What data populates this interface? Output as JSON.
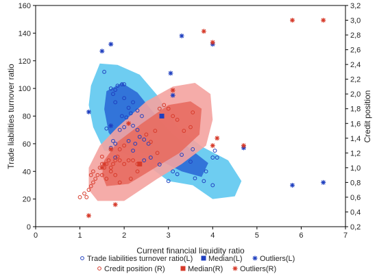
{
  "chart_data": {
    "type": "scatter",
    "xlabel": "Current financial liquidity ratio",
    "ylabel_left": "Trade liabilities turnover ratio",
    "ylabel_right": "Credit position",
    "x_ticks": [
      "0",
      "1",
      "2",
      "3",
      "4",
      "5",
      "6",
      "7"
    ],
    "y_left_ticks": [
      "0",
      "20",
      "40",
      "60",
      "80",
      "100",
      "120",
      "140",
      "160"
    ],
    "y_right_ticks": [
      "0,2",
      "0,4",
      "0,6",
      "0,8",
      "1,0",
      "1,2",
      "1,4",
      "1,6",
      "1,8",
      "2,0",
      "2,2",
      "2,4",
      "2,6",
      "2,8",
      "3,0",
      "3,2"
    ],
    "xlim": [
      0,
      7
    ],
    "ylim_left": [
      0,
      160
    ],
    "ylim_right": [
      0.2,
      3.2
    ],
    "grid": false,
    "legend_placement": "bottom",
    "series": [
      {
        "name": "Trade liabilities turnover ratio(L)",
        "axis": "left",
        "marker": "circle",
        "color": "#1f3fbf",
        "points": [
          [
            1.55,
            112
          ],
          [
            1.7,
            100
          ],
          [
            1.8,
            99
          ],
          [
            1.85,
            102
          ],
          [
            1.95,
            103
          ],
          [
            2.0,
            103
          ],
          [
            1.75,
            96
          ],
          [
            1.8,
            90
          ],
          [
            2.0,
            93
          ],
          [
            2.2,
            90
          ],
          [
            2.1,
            86
          ],
          [
            2.15,
            82
          ],
          [
            2.3,
            84
          ],
          [
            2.4,
            80
          ],
          [
            2.05,
            79
          ],
          [
            1.95,
            80
          ],
          [
            1.6,
            71
          ],
          [
            1.9,
            70
          ],
          [
            2.0,
            72
          ],
          [
            2.2,
            73
          ],
          [
            2.3,
            70
          ],
          [
            1.75,
            62
          ],
          [
            1.8,
            60
          ],
          [
            1.7,
            57
          ],
          [
            2.1,
            62
          ],
          [
            2.25,
            60
          ],
          [
            2.35,
            65
          ],
          [
            2.45,
            63
          ],
          [
            2.55,
            60
          ],
          [
            2.2,
            55
          ],
          [
            1.8,
            50
          ],
          [
            2.45,
            48
          ],
          [
            2.6,
            50
          ],
          [
            3.1,
            40
          ],
          [
            3.2,
            38
          ],
          [
            3.0,
            33
          ],
          [
            3.5,
            47
          ],
          [
            3.6,
            35
          ],
          [
            3.8,
            33
          ],
          [
            3.85,
            40
          ],
          [
            4.0,
            50
          ],
          [
            4.05,
            55
          ],
          [
            4.1,
            50
          ],
          [
            4.0,
            30
          ],
          [
            3.3,
            52
          ],
          [
            3.55,
            56
          ],
          [
            2.8,
            45
          ]
        ]
      },
      {
        "name": "Median(L)",
        "axis": "left",
        "marker": "square",
        "color": "#1f3fbf",
        "points": [
          [
            2.85,
            80
          ]
        ]
      },
      {
        "name": "Outliers(L)",
        "axis": "left",
        "marker": "star",
        "color": "#1f3fbf",
        "points": [
          [
            1.2,
            83
          ],
          [
            1.5,
            127
          ],
          [
            1.7,
            132
          ],
          [
            3.05,
            111
          ],
          [
            3.3,
            138
          ],
          [
            4.0,
            132
          ],
          [
            4.7,
            57
          ],
          [
            5.8,
            30
          ],
          [
            6.5,
            32
          ],
          [
            1.7,
            73
          ],
          [
            3.1,
            95
          ]
        ]
      },
      {
        "name": "Credit position (R)",
        "axis": "right",
        "marker": "circle",
        "color": "#d63a2a",
        "points": [
          [
            1.0,
            0.6
          ],
          [
            1.1,
            0.65
          ],
          [
            1.15,
            0.6
          ],
          [
            1.2,
            0.7
          ],
          [
            1.25,
            0.75
          ],
          [
            1.3,
            0.8
          ],
          [
            1.35,
            0.85
          ],
          [
            1.25,
            0.9
          ],
          [
            1.3,
            0.95
          ],
          [
            1.4,
            0.9
          ],
          [
            1.45,
            1.0
          ],
          [
            1.5,
            1.05
          ],
          [
            1.55,
            1.0
          ],
          [
            1.6,
            1.05
          ],
          [
            1.65,
            1.1
          ],
          [
            1.7,
            1.0
          ],
          [
            1.75,
            1.05
          ],
          [
            1.8,
            1.1
          ],
          [
            1.85,
            1.15
          ],
          [
            1.9,
            1.1
          ],
          [
            2.0,
            1.05
          ],
          [
            2.1,
            1.1
          ],
          [
            2.2,
            1.1
          ],
          [
            2.3,
            1.05
          ],
          [
            1.5,
            0.9
          ],
          [
            1.6,
            0.85
          ],
          [
            1.7,
            0.95
          ],
          [
            1.8,
            0.9
          ],
          [
            1.5,
            1.15
          ],
          [
            1.9,
            1.25
          ],
          [
            2.0,
            1.3
          ],
          [
            2.5,
            1.45
          ],
          [
            2.6,
            1.35
          ],
          [
            2.7,
            1.5
          ],
          [
            2.75,
            1.2
          ],
          [
            2.8,
            1.8
          ],
          [
            2.9,
            1.85
          ],
          [
            3.0,
            1.8
          ],
          [
            3.1,
            1.7
          ],
          [
            3.2,
            1.65
          ],
          [
            3.35,
            1.5
          ],
          [
            3.55,
            1.75
          ],
          [
            3.5,
            1.55
          ],
          [
            2.15,
            0.85
          ],
          [
            1.9,
            0.8
          ],
          [
            2.3,
            0.95
          ]
        ]
      },
      {
        "name": "Median(R)",
        "axis": "right",
        "marker": "square",
        "color": "#d63a2a",
        "points": [
          [
            2.35,
            1.05
          ]
        ]
      },
      {
        "name": "Outliers(R)",
        "axis": "right",
        "marker": "star",
        "color": "#d63a2a",
        "points": [
          [
            1.2,
            0.35
          ],
          [
            1.5,
            1.0
          ],
          [
            1.55,
            1.05
          ],
          [
            1.8,
            0.5
          ],
          [
            2.1,
            1.6
          ],
          [
            3.1,
            2.05
          ],
          [
            3.8,
            2.85
          ],
          [
            4.0,
            2.7
          ],
          [
            4.0,
            1.3
          ],
          [
            4.1,
            1.4
          ],
          [
            4.7,
            1.3
          ],
          [
            5.8,
            3.0
          ],
          [
            6.5,
            3.0
          ],
          [
            1.7,
            1.25
          ]
        ]
      }
    ],
    "regions": [
      {
        "name": "Trade liabilities turnover ratio(L) outer",
        "axis": "left",
        "color": "#5ec8f0",
        "points": [
          [
            1.25,
            102
          ],
          [
            1.45,
            118
          ],
          [
            1.85,
            117
          ],
          [
            2.35,
            110
          ],
          [
            2.75,
            95
          ],
          [
            3.2,
            72
          ],
          [
            3.75,
            58
          ],
          [
            4.35,
            48
          ],
          [
            4.65,
            33
          ],
          [
            4.5,
            22
          ],
          [
            4.0,
            20
          ],
          [
            3.55,
            30
          ],
          [
            3.0,
            33
          ],
          [
            2.5,
            45
          ],
          [
            2.0,
            53
          ],
          [
            1.55,
            55
          ],
          [
            1.3,
            72
          ],
          [
            1.2,
            88
          ]
        ]
      },
      {
        "name": "Trade liabilities turnover ratio(L) inner",
        "axis": "left",
        "color": "#2b6ad6",
        "points": [
          [
            1.6,
            98
          ],
          [
            1.95,
            104
          ],
          [
            2.3,
            97
          ],
          [
            2.6,
            85
          ],
          [
            3.0,
            70
          ],
          [
            3.5,
            56
          ],
          [
            3.9,
            46
          ],
          [
            3.75,
            36
          ],
          [
            3.3,
            40
          ],
          [
            2.8,
            48
          ],
          [
            2.3,
            55
          ],
          [
            1.9,
            58
          ],
          [
            1.65,
            68
          ],
          [
            1.55,
            85
          ]
        ]
      },
      {
        "name": "Credit position (R) outer",
        "axis": "right",
        "color": "#f4a3a0",
        "points": [
          [
            1.4,
            0.55
          ],
          [
            2.0,
            0.55
          ],
          [
            2.75,
            0.85
          ],
          [
            3.3,
            1.05
          ],
          [
            3.85,
            1.3
          ],
          [
            4.0,
            1.65
          ],
          [
            3.95,
            2.0
          ],
          [
            3.6,
            2.15
          ],
          [
            3.1,
            2.1
          ],
          [
            2.5,
            1.9
          ],
          [
            1.85,
            1.55
          ],
          [
            1.45,
            1.3
          ],
          [
            1.2,
            1.0
          ],
          [
            1.2,
            0.7
          ]
        ]
      },
      {
        "name": "Credit position (R) inner",
        "axis": "right",
        "color": "#e86b61",
        "points": [
          [
            1.6,
            0.75
          ],
          [
            2.1,
            0.78
          ],
          [
            2.7,
            1.0
          ],
          [
            3.25,
            1.2
          ],
          [
            3.7,
            1.45
          ],
          [
            3.75,
            1.8
          ],
          [
            3.5,
            1.9
          ],
          [
            3.0,
            1.85
          ],
          [
            2.4,
            1.6
          ],
          [
            1.85,
            1.35
          ],
          [
            1.55,
            1.1
          ],
          [
            1.5,
            0.9
          ]
        ]
      }
    ]
  }
}
